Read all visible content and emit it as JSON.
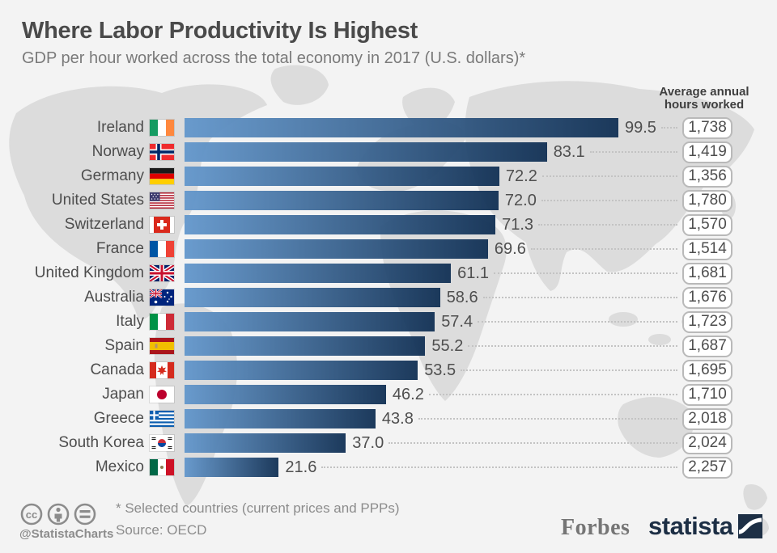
{
  "header": {
    "title": "Where Labor Productivity Is Highest",
    "subtitle": "GDP per hour worked across the total economy in 2017 (U.S. dollars)*",
    "hours_header_line1": "Average annual",
    "hours_header_line2": "hours worked"
  },
  "chart_data": {
    "type": "bar",
    "orientation": "horizontal",
    "title": "Where Labor Productivity Is Highest",
    "subtitle": "GDP per hour worked across the total economy in 2017 (U.S. dollars)*",
    "xlabel": "",
    "ylabel": "",
    "xlim": [
      0,
      105
    ],
    "grid": false,
    "legend": "none",
    "categories": [
      "Ireland",
      "Norway",
      "Germany",
      "United States",
      "Switzerland",
      "France",
      "United Kingdom",
      "Australia",
      "Italy",
      "Spain",
      "Canada",
      "Japan",
      "Greece",
      "South Korea",
      "Mexico"
    ],
    "series": [
      {
        "name": "GDP per hour worked (U.S. dollars)",
        "values": [
          99.5,
          83.1,
          72.2,
          72.0,
          71.3,
          69.6,
          61.1,
          58.6,
          57.4,
          55.2,
          53.5,
          46.2,
          43.8,
          37.0,
          21.6
        ]
      },
      {
        "name": "Average annual hours worked",
        "values": [
          1738,
          1419,
          1356,
          1780,
          1570,
          1514,
          1681,
          1676,
          1723,
          1687,
          1695,
          1710,
          2018,
          2024,
          2257
        ]
      }
    ],
    "rows": [
      {
        "country": "Ireland",
        "flag": "ie",
        "value": 99.5,
        "hours": "1,738"
      },
      {
        "country": "Norway",
        "flag": "no",
        "value": 83.1,
        "hours": "1,419"
      },
      {
        "country": "Germany",
        "flag": "de",
        "value": 72.2,
        "hours": "1,356"
      },
      {
        "country": "United States",
        "flag": "us",
        "value": 72.0,
        "hours": "1,780"
      },
      {
        "country": "Switzerland",
        "flag": "ch",
        "value": 71.3,
        "hours": "1,570"
      },
      {
        "country": "France",
        "flag": "fr",
        "value": 69.6,
        "hours": "1,514"
      },
      {
        "country": "United Kingdom",
        "flag": "gb",
        "value": 61.1,
        "hours": "1,681"
      },
      {
        "country": "Australia",
        "flag": "au",
        "value": 58.6,
        "hours": "1,676"
      },
      {
        "country": "Italy",
        "flag": "it",
        "value": 57.4,
        "hours": "1,723"
      },
      {
        "country": "Spain",
        "flag": "es",
        "value": 55.2,
        "hours": "1,687"
      },
      {
        "country": "Canada",
        "flag": "ca",
        "value": 53.5,
        "hours": "1,695"
      },
      {
        "country": "Japan",
        "flag": "jp",
        "value": 46.2,
        "hours": "1,710"
      },
      {
        "country": "Greece",
        "flag": "gr",
        "value": 43.8,
        "hours": "2,018"
      },
      {
        "country": "South Korea",
        "flag": "kr",
        "value": 37.0,
        "hours": "2,024"
      },
      {
        "country": "Mexico",
        "flag": "mx",
        "value": 21.6,
        "hours": "2,257"
      }
    ]
  },
  "footer": {
    "handle": "@StatistaCharts",
    "note": "* Selected countries (current prices and PPPs)",
    "source": "Source: OECD",
    "forbes": "Forbes",
    "statista": "statista"
  },
  "colors": {
    "background": "#f3f3f3",
    "map": "#dcdcdc",
    "bar_gradient_start": "#6397cc",
    "bar_gradient_end": "#113054",
    "title_text": "#4a4a4a",
    "subtitle_text": "#7a7a7a",
    "label_text": "#4d4d4d",
    "box_border": "#b9b9b9",
    "footer_text": "#8c8c8c",
    "forbes_logo": "#757575",
    "statista_logo": "#1d2f45"
  }
}
